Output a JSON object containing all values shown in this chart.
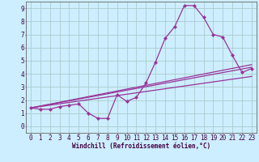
{
  "xlabel": "Windchill (Refroidissement éolien,°C)",
  "bg_color": "#cceeff",
  "line_color": "#993399",
  "grid_color": "#aacccc",
  "xlim": [
    -0.5,
    23.5
  ],
  "ylim": [
    -0.5,
    9.5
  ],
  "xticks": [
    0,
    1,
    2,
    3,
    4,
    5,
    6,
    7,
    8,
    9,
    10,
    11,
    12,
    13,
    14,
    15,
    16,
    17,
    18,
    19,
    20,
    21,
    22,
    23
  ],
  "yticks": [
    0,
    1,
    2,
    3,
    4,
    5,
    6,
    7,
    8,
    9
  ],
  "series1_x": [
    0,
    1,
    2,
    3,
    4,
    5,
    6,
    7,
    8,
    9,
    10,
    11,
    12,
    13,
    14,
    15,
    16,
    17,
    18,
    19,
    20,
    21,
    22,
    23
  ],
  "series1_y": [
    1.4,
    1.3,
    1.3,
    1.5,
    1.6,
    1.7,
    1.0,
    0.6,
    0.6,
    2.4,
    1.9,
    2.2,
    3.3,
    4.9,
    6.7,
    7.6,
    9.2,
    9.2,
    8.3,
    7.0,
    6.8,
    5.4,
    4.1,
    4.4
  ],
  "series2_x": [
    0,
    23
  ],
  "series2_y": [
    1.4,
    4.7
  ],
  "series3_x": [
    0,
    23
  ],
  "series3_y": [
    1.4,
    3.8
  ],
  "series4_x": [
    0,
    23
  ],
  "series4_y": [
    1.4,
    4.5
  ],
  "marker": "D",
  "markersize": 2.0,
  "linewidth": 0.9,
  "tick_fontsize": 5.5,
  "xlabel_fontsize": 5.5
}
